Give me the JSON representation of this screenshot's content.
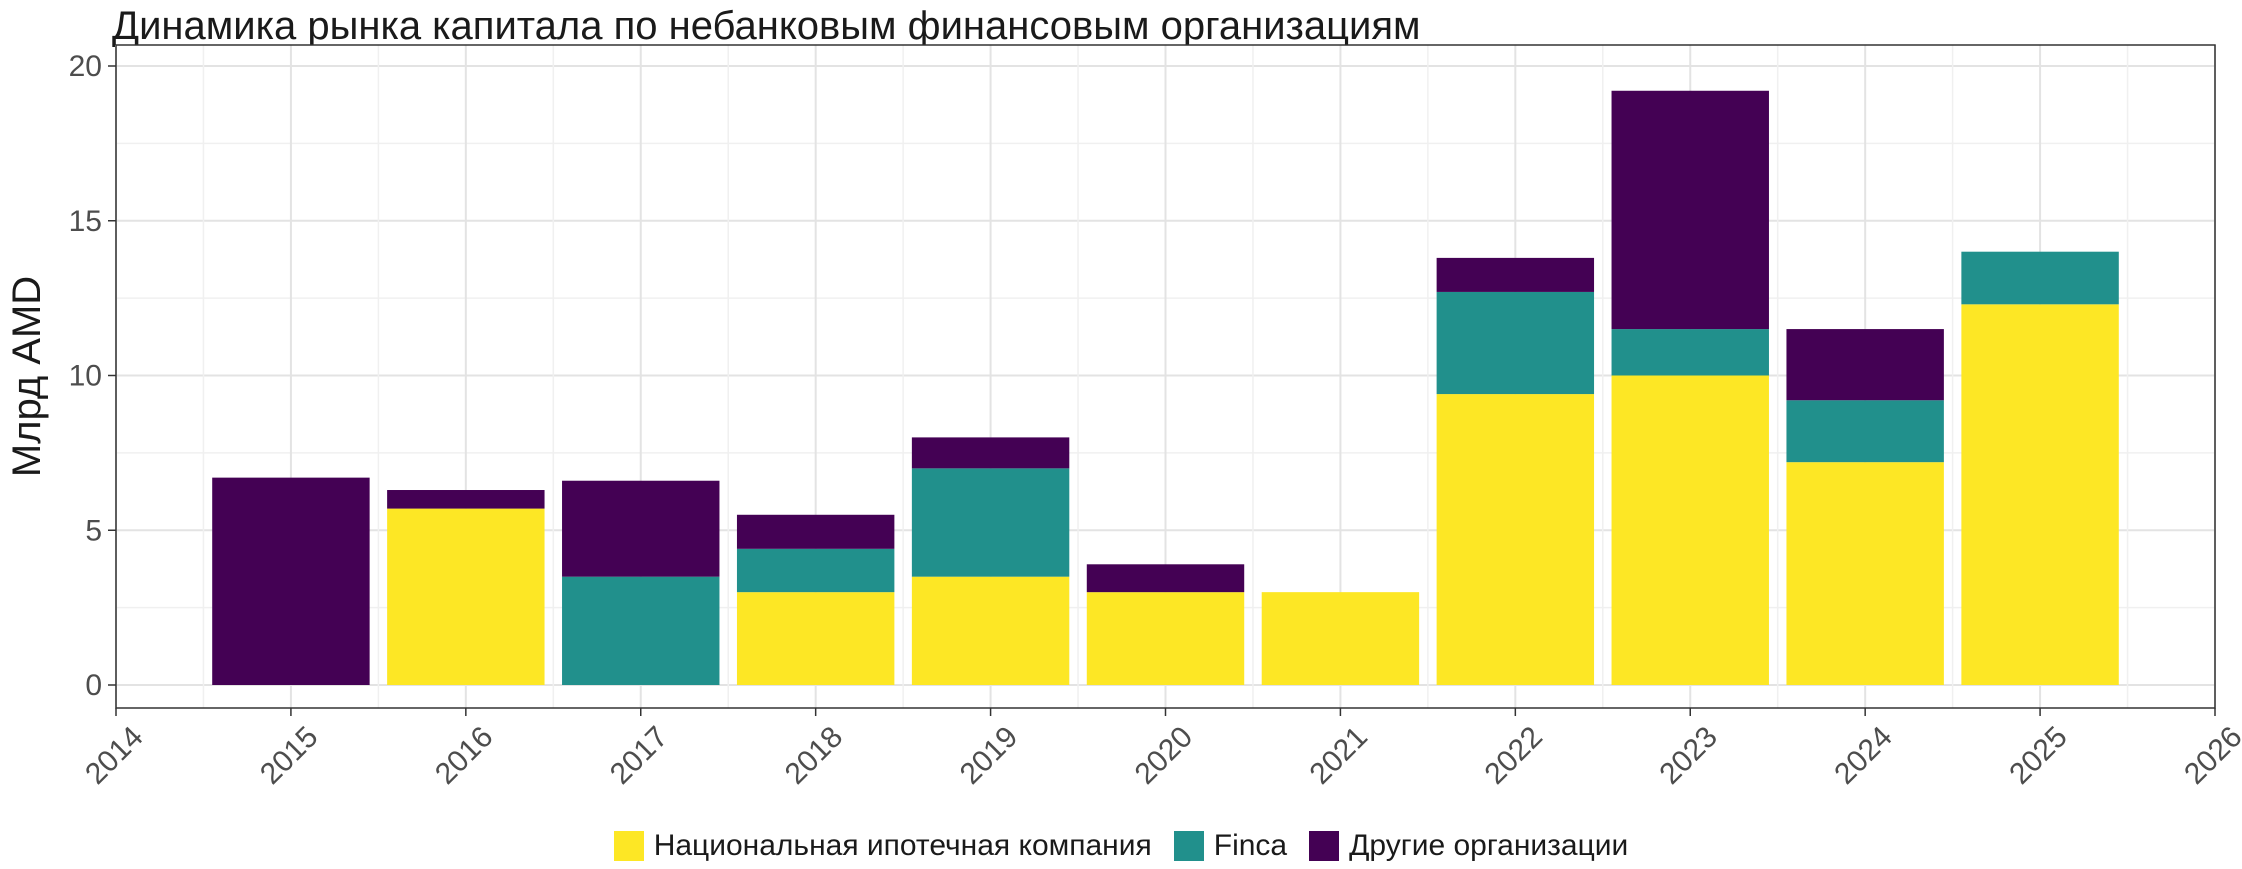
{
  "chart_data": {
    "type": "bar",
    "stacked": true,
    "title": "Динамика рынка капитала по небанковым финансовым организациям",
    "xlabel": "",
    "ylabel": "Млрд AMD",
    "xlim": [
      2014,
      2026
    ],
    "x_ticks": [
      "2014",
      "2015",
      "2016",
      "2017",
      "2018",
      "2019",
      "2020",
      "2021",
      "2022",
      "2023",
      "2024",
      "2025",
      "2026"
    ],
    "ylim": [
      0,
      20
    ],
    "y_ticks": [
      "0",
      "5",
      "10",
      "15",
      "20"
    ],
    "grid": true,
    "legend_position": "bottom",
    "categories": [
      "2015",
      "2016",
      "2017",
      "2018",
      "2019",
      "2020",
      "2021",
      "2022",
      "2023",
      "2024",
      "2025"
    ],
    "series": [
      {
        "name": "Национальная ипотечная компания",
        "color": "#FDE725",
        "values": [
          0,
          5.7,
          0,
          3.0,
          3.5,
          3.0,
          3.0,
          9.4,
          10.0,
          7.2,
          12.3
        ]
      },
      {
        "name": "Finca",
        "color": "#21908C",
        "values": [
          0,
          0,
          3.5,
          1.4,
          3.5,
          0,
          0,
          3.3,
          1.5,
          2.0,
          1.7
        ]
      },
      {
        "name": "Другие организации",
        "color": "#440154",
        "values": [
          6.7,
          0.6,
          3.1,
          1.1,
          1.0,
          0.9,
          0,
          1.1,
          7.7,
          2.3,
          0
        ]
      }
    ]
  }
}
